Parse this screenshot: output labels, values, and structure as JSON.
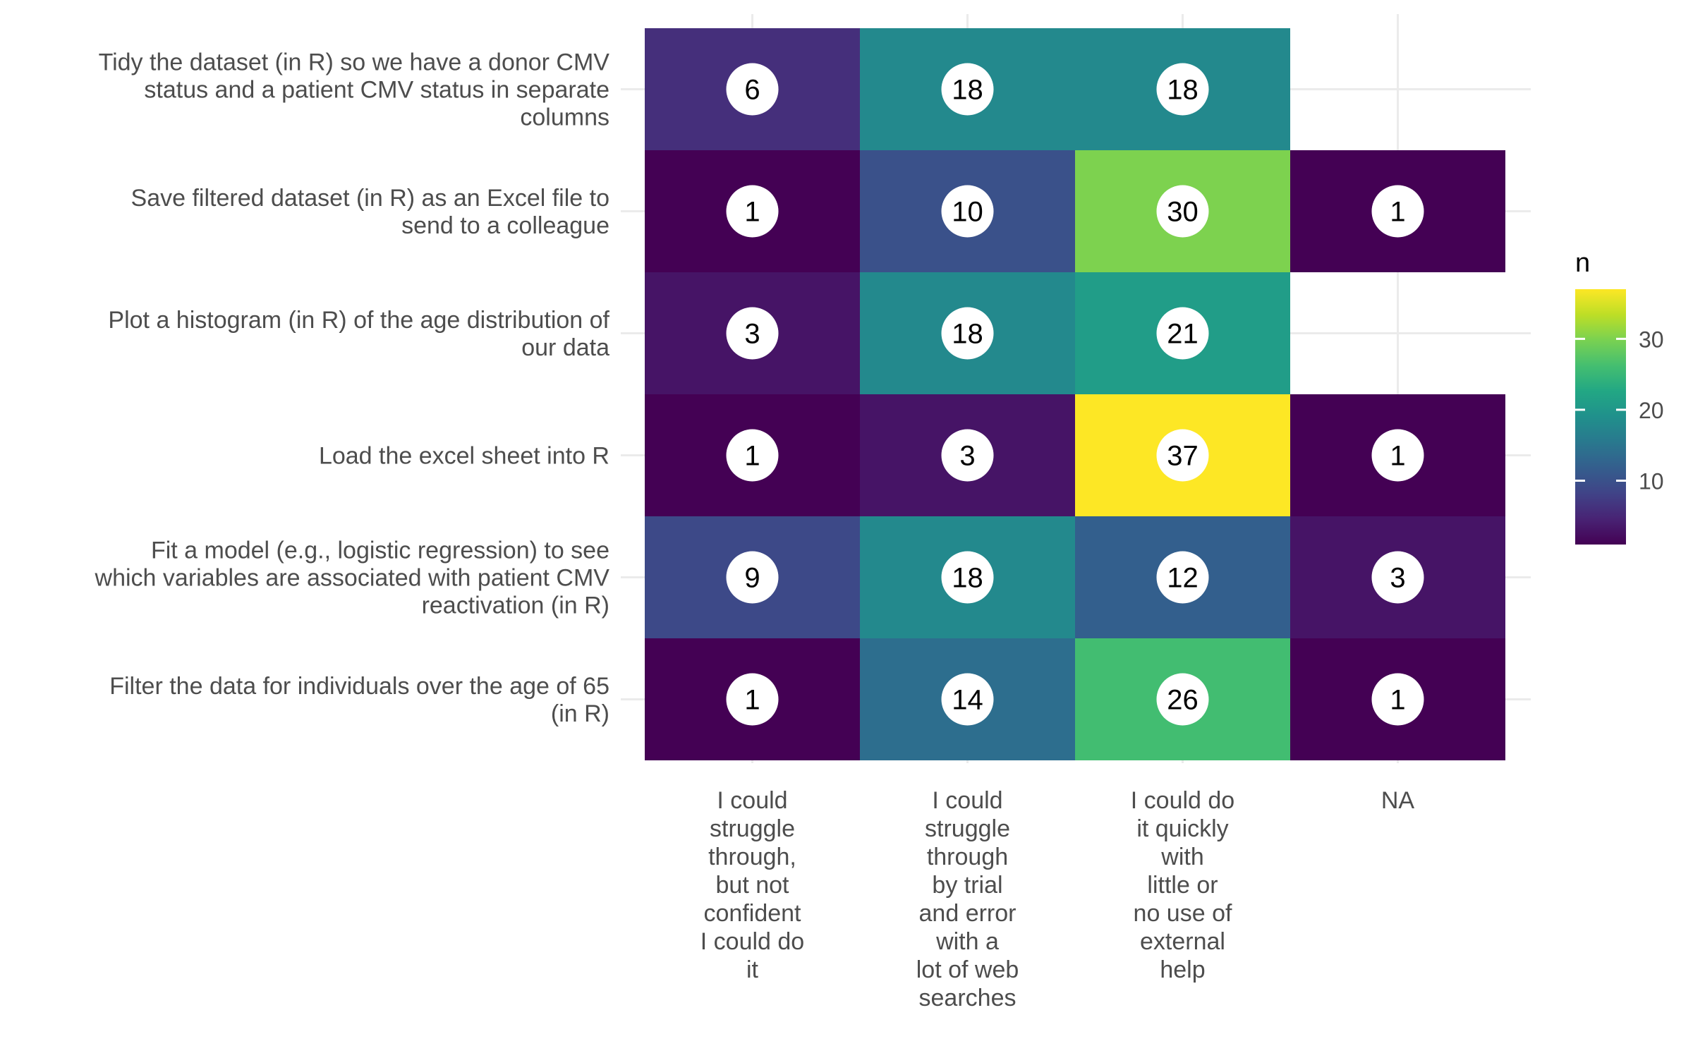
{
  "chart_data": {
    "type": "heatmap",
    "title": "",
    "xlabel": "",
    "ylabel": "",
    "rows": [
      "Tidy the dataset (in R) so we have a donor CMV status and a patient CMV status in separate columns",
      "Save filtered dataset (in R) as an Excel file to send to a colleague",
      "Plot a histogram (in R) of the age distribution of our data",
      "Load the excel sheet into R",
      "Fit a model (e.g., logistic regression) to see which variables are associated with patient CMV reactivation (in R)",
      "Filter the data for individuals over the age of 65 (in R)"
    ],
    "row_label_lines": [
      [
        "Tidy the dataset (in R) so we have a donor CMV",
        "status and a patient CMV status in separate",
        "columns"
      ],
      [
        "Save filtered dataset (in R) as an Excel file to",
        "send to a colleague"
      ],
      [
        "Plot a histogram (in R) of the age distribution of",
        "our data"
      ],
      [
        "Load the excel sheet into R"
      ],
      [
        "Fit a model (e.g., logistic regression) to see",
        "which variables are associated with patient CMV",
        "reactivation (in R)"
      ],
      [
        "Filter the data for individuals over the age of 65",
        "(in R)"
      ]
    ],
    "columns": [
      "I could struggle through, but not confident I could do it",
      "I could struggle through by trial and error with a lot of web searches",
      "I could do it quickly with little or no use of external help",
      "NA"
    ],
    "column_label_lines": [
      [
        "I could",
        "struggle",
        "through,",
        "but not",
        "confident",
        "I could do",
        "it"
      ],
      [
        "I could",
        "struggle",
        "through",
        "by trial",
        "and error",
        "with a",
        "lot of web",
        "searches"
      ],
      [
        "I could do",
        "it quickly",
        "with",
        "little or",
        "no use of",
        "external",
        "help"
      ],
      [
        "NA"
      ]
    ],
    "values": [
      [
        6,
        18,
        18,
        null
      ],
      [
        1,
        10,
        30,
        1
      ],
      [
        3,
        18,
        21,
        null
      ],
      [
        1,
        3,
        37,
        1
      ],
      [
        9,
        18,
        12,
        3
      ],
      [
        1,
        14,
        26,
        1
      ]
    ],
    "colorscale": "viridis",
    "value_range": [
      1,
      37
    ],
    "legend": {
      "title": "n",
      "ticks": [
        10,
        20,
        30
      ],
      "position": "right"
    },
    "grid": true
  }
}
